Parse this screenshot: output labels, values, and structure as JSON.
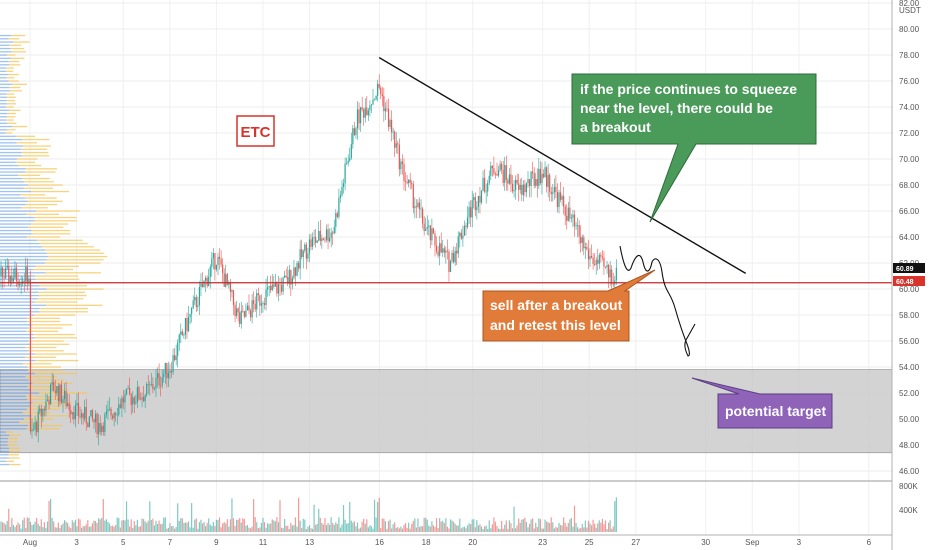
{
  "symbol_label": "ETC",
  "axis": {
    "currency": "USDT",
    "y_ticks": [
      "82.00",
      "80.00",
      "78.00",
      "76.00",
      "74.00",
      "72.00",
      "70.00",
      "68.00",
      "66.00",
      "64.00",
      "62.00",
      "60.00",
      "58.00",
      "56.00",
      "54.00",
      "52.00",
      "50.00",
      "48.00",
      "46.00"
    ],
    "volume_ticks": [
      "800K",
      "400K"
    ],
    "x_ticks": [
      "Aug",
      "3",
      "5",
      "7",
      "9",
      "11",
      "13",
      "16",
      "18",
      "20",
      "23",
      "25",
      "27",
      "30",
      "Sep",
      "3",
      "6"
    ]
  },
  "price_tags": [
    {
      "value": "60.89",
      "color": "#111111"
    },
    {
      "value": "60.48",
      "color": "#d9342b"
    }
  ],
  "annotations": {
    "green_note": [
      "if the price continues to squeeze",
      "near the level, there could be",
      "a breakout"
    ],
    "orange_note": [
      "sell after a breakout",
      "and retest this level"
    ],
    "purple_note": "potential target"
  },
  "colors": {
    "up": "#26a69a",
    "down": "#ef5350",
    "support_line": "#c62828",
    "zone": "#c8c8c8",
    "green_box": "#4a9a5a",
    "orange_box": "#e07b39",
    "purple_box": "#8e63b8",
    "profile_blue": "#4f8fe6",
    "profile_yellow": "#f5c453"
  },
  "chart_data": {
    "type": "candlestick",
    "symbol": "ETC",
    "ylim": [
      45,
      82
    ],
    "horizontal_level": 60.48,
    "last_price": 60.89,
    "target_zone": [
      47.4,
      53.8
    ],
    "trendline": {
      "from": {
        "date": "Aug 15",
        "value": 77.8
      },
      "to": {
        "date": "Aug 30",
        "value": 61.2
      }
    },
    "price_path": [
      [
        "Aug 1",
        48.5
      ],
      [
        "Aug 2",
        52.5
      ],
      [
        "Aug 3",
        50.5
      ],
      [
        "Aug 4",
        49.5
      ],
      [
        "Aug 5",
        51.5
      ],
      [
        "Aug 6",
        52.0
      ],
      [
        "Aug 7",
        54.0
      ],
      [
        "Aug 8",
        58.5
      ],
      [
        "Aug 9",
        62.5
      ],
      [
        "Aug 10",
        57.5
      ],
      [
        "Aug 11",
        59.5
      ],
      [
        "Aug 12",
        60.5
      ],
      [
        "Aug 13",
        63.5
      ],
      [
        "Aug 14",
        64.5
      ],
      [
        "Aug 15",
        73.0
      ],
      [
        "Aug 16",
        75.5
      ],
      [
        "Aug 17",
        69.0
      ],
      [
        "Aug 18",
        64.5
      ],
      [
        "Aug 19",
        62.0
      ],
      [
        "Aug 20",
        66.5
      ],
      [
        "Aug 21",
        69.5
      ],
      [
        "Aug 22",
        67.5
      ],
      [
        "Aug 23",
        69.0
      ],
      [
        "Aug 24",
        66.0
      ],
      [
        "Aug 25",
        62.5
      ],
      [
        "Aug 26",
        61.0
      ]
    ]
  }
}
